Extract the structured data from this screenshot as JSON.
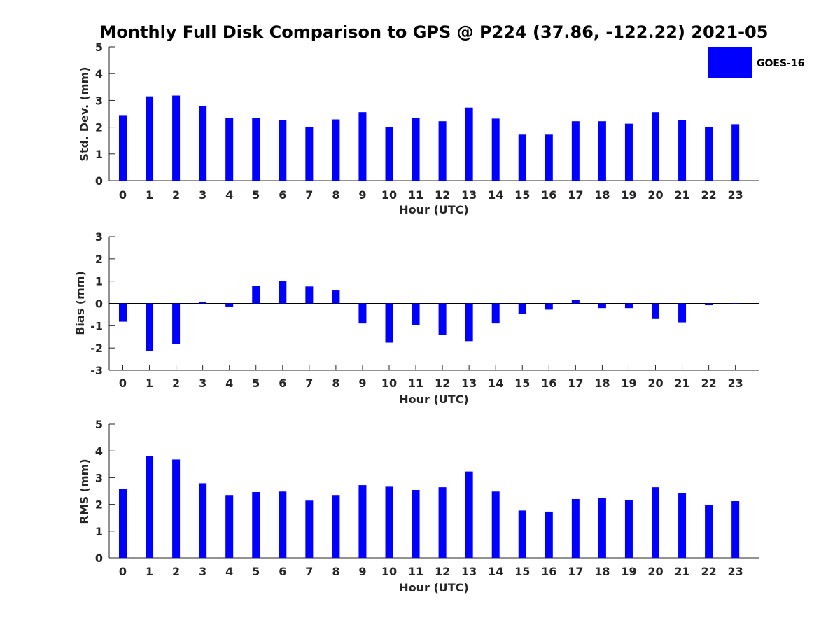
{
  "figure": {
    "title": "Monthly Full Disk Comparison to GPS @ P224 (37.86, -122.22) 2021-05",
    "legend_label": "GOES-16",
    "bar_color": "#0000ff"
  },
  "chart_data": [
    {
      "type": "bar",
      "xlabel": "Hour (UTC)",
      "ylabel": "Std. Dev. (mm)",
      "ylim": [
        0,
        5
      ],
      "yticks": [
        0,
        1,
        2,
        3,
        4,
        5
      ],
      "categories": [
        "0",
        "1",
        "2",
        "3",
        "4",
        "5",
        "6",
        "7",
        "8",
        "9",
        "10",
        "11",
        "12",
        "13",
        "14",
        "15",
        "16",
        "17",
        "18",
        "19",
        "20",
        "21",
        "22",
        "23"
      ],
      "series": [
        {
          "name": "GOES-16",
          "values": [
            2.45,
            3.15,
            3.18,
            2.8,
            2.35,
            2.35,
            2.27,
            2.0,
            2.29,
            2.56,
            2.0,
            2.35,
            2.22,
            2.73,
            2.32,
            1.72,
            1.72,
            2.22,
            2.22,
            2.13,
            2.56,
            2.27,
            2.0,
            2.11
          ]
        }
      ],
      "legend": "top-right",
      "grid": false
    },
    {
      "type": "bar",
      "xlabel": "Hour (UTC)",
      "ylabel": "Bias (mm)",
      "ylim": [
        -3,
        3
      ],
      "yticks": [
        -3,
        -2,
        -1,
        0,
        1,
        2,
        3
      ],
      "categories": [
        "0",
        "1",
        "2",
        "3",
        "4",
        "5",
        "6",
        "7",
        "8",
        "9",
        "10",
        "11",
        "12",
        "13",
        "14",
        "15",
        "16",
        "17",
        "18",
        "19",
        "20",
        "21",
        "22",
        "23"
      ],
      "series": [
        {
          "name": "GOES-16",
          "values": [
            -0.82,
            -2.12,
            -1.82,
            0.08,
            -0.14,
            0.8,
            1.01,
            0.76,
            0.58,
            -0.9,
            -1.76,
            -0.97,
            -1.4,
            -1.69,
            -0.9,
            -0.47,
            -0.28,
            0.16,
            -0.21,
            -0.21,
            -0.7,
            -0.85,
            -0.08,
            -0.02
          ]
        }
      ],
      "grid": false
    },
    {
      "type": "bar",
      "xlabel": "Hour (UTC)",
      "ylabel": "RMS (mm)",
      "ylim": [
        0,
        5
      ],
      "yticks": [
        0,
        1,
        2,
        3,
        4,
        5
      ],
      "categories": [
        "0",
        "1",
        "2",
        "3",
        "4",
        "5",
        "6",
        "7",
        "8",
        "9",
        "10",
        "11",
        "12",
        "13",
        "14",
        "15",
        "16",
        "17",
        "18",
        "19",
        "20",
        "21",
        "22",
        "23"
      ],
      "series": [
        {
          "name": "GOES-16",
          "values": [
            2.58,
            3.82,
            3.68,
            2.79,
            2.35,
            2.46,
            2.48,
            2.14,
            2.35,
            2.72,
            2.66,
            2.54,
            2.64,
            3.23,
            2.48,
            1.77,
            1.73,
            2.2,
            2.23,
            2.15,
            2.64,
            2.43,
            1.99,
            2.12
          ]
        }
      ],
      "grid": false
    }
  ]
}
